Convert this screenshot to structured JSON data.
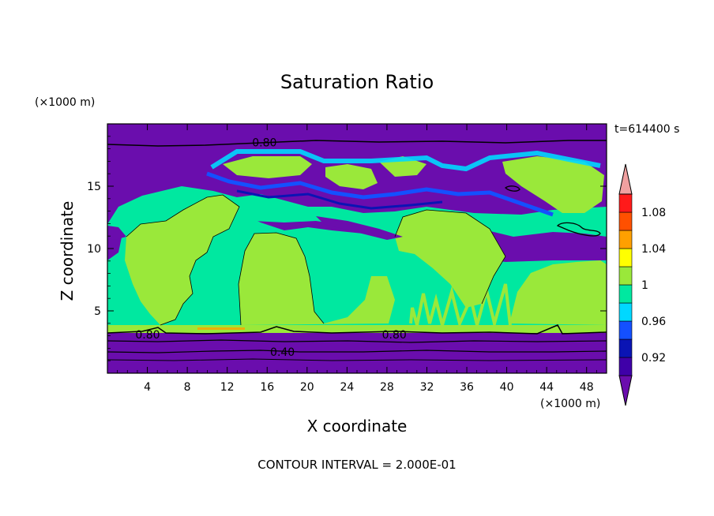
{
  "chart_data": {
    "type": "heatmap",
    "title": "Saturation Ratio",
    "xlabel": "X coordinate",
    "ylabel": "Z coordinate",
    "x_unit_label": "(×1000 m)",
    "y_unit_label": "(×1000 m)",
    "time_label": "t=614400 s",
    "footer": "CONTOUR INTERVAL = 2.000E-01",
    "xlim": [
      0,
      50
    ],
    "ylim": [
      0,
      20
    ],
    "x_ticks": [
      "4",
      "8",
      "12",
      "16",
      "20",
      "24",
      "28",
      "32",
      "36",
      "40",
      "44",
      "48"
    ],
    "y_ticks": [
      "5",
      "10",
      "15"
    ],
    "colorbar": {
      "levels": [
        0.9,
        0.92,
        0.94,
        0.96,
        0.98,
        1.0,
        1.02,
        1.04,
        1.06,
        1.08,
        1.1
      ],
      "labels": [
        "0.92",
        "0.96",
        "1",
        "1.04",
        "1.08"
      ],
      "colors": [
        "#6a0dad",
        "#3f00a8",
        "#0a14b4",
        "#1450ff",
        "#00d8ff",
        "#00e8a0",
        "#9ae83a",
        "#ffff00",
        "#ffa000",
        "#ff5000",
        "#ff1a1a",
        "#f0a0a0"
      ]
    },
    "contour_labels": [
      {
        "text": "0.80",
        "x": 14.5,
        "y": 18.5
      },
      {
        "text": "0.80",
        "x": 2.8,
        "y": 3.1
      },
      {
        "text": "0.80",
        "x": 27.5,
        "y": 3.1
      },
      {
        "text": "0.40",
        "x": 16.3,
        "y": 1.7
      }
    ]
  }
}
